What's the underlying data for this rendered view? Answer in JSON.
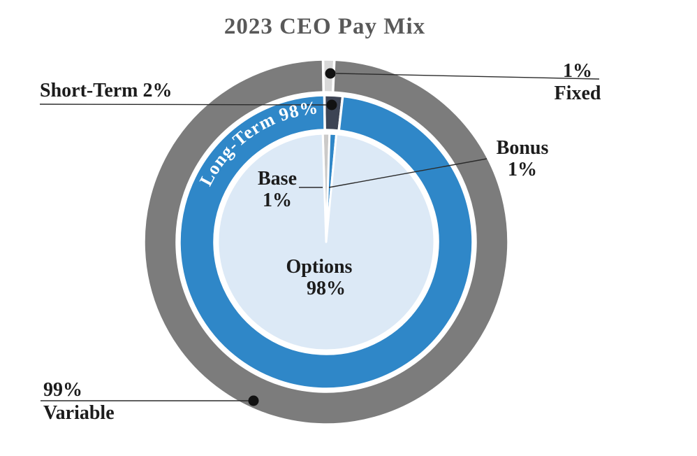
{
  "chart_data": {
    "type": "pie",
    "subtype": "concentric-donut",
    "title": "2023 CEO Pay Mix",
    "legend": "none",
    "rings": [
      {
        "name": "pay-components",
        "level": "inner",
        "start_angle": -1.8,
        "segments": [
          {
            "label": "Base",
            "value": 1,
            "color": "#cbcac9"
          },
          {
            "label": "Bonus",
            "value": 1,
            "color": "#2f87c8"
          },
          {
            "label": "Options",
            "value": 98,
            "color": "#dce9f6"
          }
        ]
      },
      {
        "name": "term-mix",
        "level": "middle",
        "start_angle": -0.7,
        "segments": [
          {
            "label": "Short-Term",
            "value": 2,
            "color": "#3d4454"
          },
          {
            "label": "Long-Term",
            "value": 98,
            "color": "#2f87c8"
          }
        ]
      },
      {
        "name": "fixed-variable-mix",
        "level": "outer",
        "start_angle": -1.0,
        "segments": [
          {
            "label": "Fixed",
            "value": 1,
            "color": "#d8d8d8"
          },
          {
            "label": "Variable",
            "value": 99,
            "color": "#7c7c7c"
          }
        ]
      }
    ],
    "callouts": {
      "short_term": "Short-Term 2%",
      "fixed": {
        "line1": "1%",
        "line2": "Fixed"
      },
      "bonus": {
        "line1": "Bonus",
        "line2": "1%"
      },
      "base": {
        "line1": "Base",
        "line2": "1%"
      },
      "options": {
        "line1": "Options",
        "line2": "98%"
      },
      "variable": {
        "line1": "99%",
        "line2": "Variable"
      },
      "long_term_arc": "Long-Term 98%"
    },
    "colors": {
      "title": "#595959",
      "label_text": "#1c1c1c",
      "leader_line": "#2b2b2b",
      "callout_dot": "#121212",
      "arc_text": "#ffffff",
      "background": "#ffffff"
    }
  }
}
